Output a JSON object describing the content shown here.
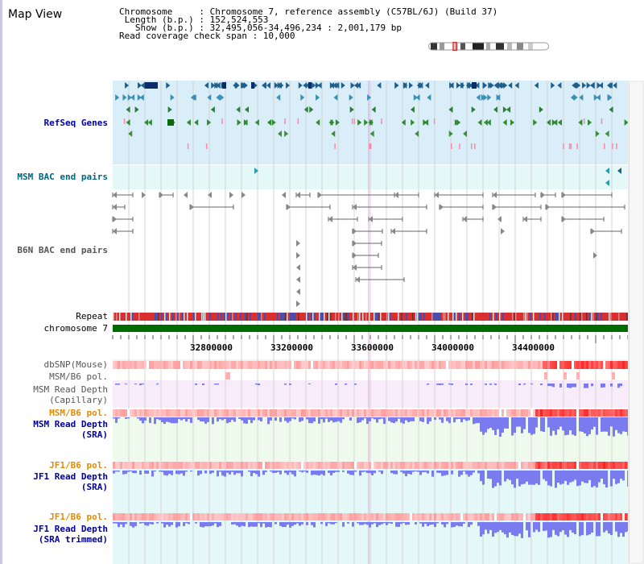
{
  "page": {
    "title": "Map View"
  },
  "info": {
    "line1": "Chromosome     : Chromosome 7, reference assembly (C57BL/6J) (Build 37)",
    "line2": " Length (b.p.) : 152,524,553",
    "line3": "   Show (b.p.) : 32,495,056-34,496,234 : 2,001,179 bp",
    "line4": "Read coverage check span : 10,000"
  },
  "tracks": {
    "refseq": "RefSeq Genes",
    "msm_bac": "MSM BAC end pairs",
    "b6n_bac": "B6N BAC end pairs",
    "repeat": "Repeat",
    "chromosome": "chromosome 7",
    "dbsnp": "dbSNP(Mouse)",
    "msm_b6_pol_1": "MSM/B6 pol.",
    "msm_read_depth_cap_1": "MSM Read Depth",
    "msm_read_depth_cap_2": "(Capillary)",
    "msm_b6_pol_2": "MSM/B6 pol.",
    "msm_read_depth_sra_1": "MSM Read Depth",
    "msm_read_depth_sra_2": "(SRA)",
    "jf1_b6_pol_1": "JF1/B6 pol.",
    "jf1_read_depth_sra_1": "JF1 Read Depth",
    "jf1_read_depth_sra_2": "(SRA)",
    "jf1_b6_pol_2": "JF1/B6 pol.",
    "jf1_read_depth_trim_1": "JF1 Read Depth",
    "jf1_read_depth_trim_2": "(SRA trimmed)"
  },
  "axis": {
    "ticks": [
      "32800000",
      "33200000",
      "33600000",
      "34000000",
      "34400000"
    ]
  },
  "colors": {
    "refseq_label": "#000099",
    "msm_bac_label": "#006680",
    "b6n_label": "#555555",
    "pol_label": "#e68a00",
    "depth_label": "#000099"
  }
}
